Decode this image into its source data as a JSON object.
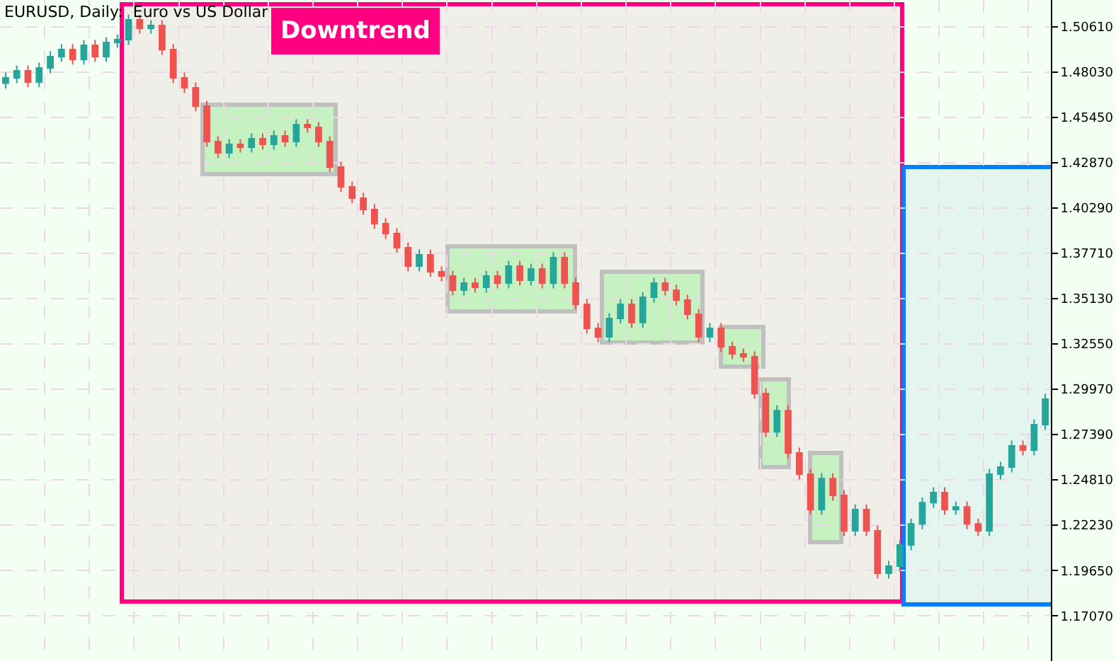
{
  "chart_data": {
    "type": "candlestick",
    "title": "EURUSD, Daily:  Euro vs US Dollar",
    "annotations": [
      "Downtrend"
    ],
    "categories": [
      null,
      null,
      null,
      null,
      null,
      null,
      null,
      null,
      null,
      null,
      null,
      null,
      null,
      null,
      null,
      null,
      null,
      null,
      null,
      null,
      null,
      null,
      null,
      null,
      null,
      null,
      null,
      null,
      null,
      null,
      null,
      null,
      null,
      null,
      null,
      null,
      null,
      null,
      null,
      null,
      null,
      null,
      null,
      null,
      null,
      null,
      null,
      null,
      null,
      null,
      null,
      null,
      null,
      null,
      null,
      null,
      null,
      null,
      null,
      null,
      null,
      null,
      null,
      null,
      null,
      null,
      null,
      null,
      null,
      null,
      null,
      null,
      null,
      null,
      null,
      null,
      null,
      null,
      null,
      null,
      null,
      null,
      null,
      null,
      null,
      null,
      null,
      null,
      null,
      null,
      null,
      null,
      null,
      null
    ],
    "ohlc": [
      [
        1.474,
        1.4801,
        1.471,
        1.4771
      ],
      [
        1.4771,
        1.4841,
        1.4741,
        1.4811
      ],
      [
        1.4811,
        1.4841,
        1.4717,
        1.4747
      ],
      [
        1.4747,
        1.4857,
        1.4717,
        1.4827
      ],
      [
        1.4827,
        1.4922,
        1.4797,
        1.4892
      ],
      [
        1.4892,
        1.4962,
        1.4862,
        1.4932
      ],
      [
        1.4932,
        1.4962,
        1.4846,
        1.4876
      ],
      [
        1.4876,
        1.4986,
        1.4846,
        1.4956
      ],
      [
        1.4956,
        1.4986,
        1.4862,
        1.4892
      ],
      [
        1.4892,
        1.5002,
        1.4862,
        1.4972
      ],
      [
        1.4972,
        1.5018,
        1.4942,
        1.4988
      ],
      [
        1.4988,
        1.5131,
        1.4958,
        1.5101
      ],
      [
        1.5101,
        1.5131,
        1.5023,
        1.5053
      ],
      [
        1.5053,
        1.5099,
        1.5023,
        1.5069
      ],
      [
        1.5069,
        1.5099,
        1.4902,
        1.4932
      ],
      [
        1.4932,
        1.4962,
        1.4741,
        1.4771
      ],
      [
        1.4771,
        1.4801,
        1.4684,
        1.4714
      ],
      [
        1.4714,
        1.4744,
        1.458,
        1.461
      ],
      [
        1.461,
        1.464,
        1.4378,
        1.4408
      ],
      [
        1.4408,
        1.4438,
        1.4314,
        1.4344
      ],
      [
        1.4344,
        1.4422,
        1.4314,
        1.4392
      ],
      [
        1.4392,
        1.4422,
        1.4346,
        1.4376
      ],
      [
        1.4376,
        1.4454,
        1.4346,
        1.4424
      ],
      [
        1.4424,
        1.4454,
        1.4362,
        1.4392
      ],
      [
        1.4392,
        1.447,
        1.4362,
        1.444
      ],
      [
        1.444,
        1.447,
        1.4378,
        1.4408
      ],
      [
        1.4408,
        1.4535,
        1.4378,
        1.4505
      ],
      [
        1.4505,
        1.4535,
        1.4459,
        1.4489
      ],
      [
        1.4489,
        1.4519,
        1.4378,
        1.4408
      ],
      [
        1.4408,
        1.4438,
        1.4233,
        1.4263
      ],
      [
        1.4263,
        1.4293,
        1.412,
        1.415
      ],
      [
        1.415,
        1.418,
        1.4056,
        1.4086
      ],
      [
        1.4086,
        1.4116,
        1.3991,
        1.4021
      ],
      [
        1.4021,
        1.4051,
        1.3911,
        1.3941
      ],
      [
        1.3941,
        1.3971,
        1.3854,
        1.3884
      ],
      [
        1.3884,
        1.3914,
        1.3774,
        1.3804
      ],
      [
        1.3804,
        1.3834,
        1.3669,
        1.3699
      ],
      [
        1.3699,
        1.3793,
        1.3669,
        1.3763
      ],
      [
        1.3763,
        1.3793,
        1.3637,
        1.3667
      ],
      [
        1.3667,
        1.3697,
        1.3612,
        1.3642
      ],
      [
        1.3642,
        1.3672,
        1.3532,
        1.3562
      ],
      [
        1.3562,
        1.3632,
        1.3532,
        1.3602
      ],
      [
        1.3602,
        1.3632,
        1.3548,
        1.3578
      ],
      [
        1.3578,
        1.3672,
        1.3548,
        1.3642
      ],
      [
        1.3642,
        1.3672,
        1.3572,
        1.3602
      ],
      [
        1.3602,
        1.3729,
        1.3572,
        1.3699
      ],
      [
        1.3699,
        1.3729,
        1.3588,
        1.3618
      ],
      [
        1.3618,
        1.3713,
        1.3588,
        1.3683
      ],
      [
        1.3683,
        1.3713,
        1.3572,
        1.3602
      ],
      [
        1.3602,
        1.3777,
        1.3572,
        1.3747
      ],
      [
        1.3747,
        1.3777,
        1.3572,
        1.3602
      ],
      [
        1.3602,
        1.3632,
        1.3451,
        1.3481
      ],
      [
        1.3481,
        1.3511,
        1.3314,
        1.3344
      ],
      [
        1.3344,
        1.3374,
        1.3266,
        1.3296
      ],
      [
        1.3296,
        1.3431,
        1.3266,
        1.3401
      ],
      [
        1.3401,
        1.3511,
        1.3371,
        1.3481
      ],
      [
        1.3481,
        1.3511,
        1.3347,
        1.3377
      ],
      [
        1.3377,
        1.3551,
        1.3347,
        1.3521
      ],
      [
        1.3521,
        1.3632,
        1.3491,
        1.3602
      ],
      [
        1.3602,
        1.3632,
        1.3532,
        1.3562
      ],
      [
        1.3562,
        1.3592,
        1.3475,
        1.3505
      ],
      [
        1.3505,
        1.3535,
        1.3395,
        1.3425
      ],
      [
        1.3425,
        1.3455,
        1.3266,
        1.3296
      ],
      [
        1.3296,
        1.3374,
        1.3266,
        1.3344
      ],
      [
        1.3344,
        1.3374,
        1.3209,
        1.3239
      ],
      [
        1.3239,
        1.3269,
        1.3169,
        1.3199
      ],
      [
        1.3199,
        1.3229,
        1.3153,
        1.3183
      ],
      [
        1.3183,
        1.3213,
        1.2943,
        1.2973
      ],
      [
        1.2973,
        1.3003,
        1.2725,
        1.2755
      ],
      [
        1.2755,
        1.2906,
        1.2725,
        1.2876
      ],
      [
        1.2876,
        1.2906,
        1.2605,
        1.2635
      ],
      [
        1.2635,
        1.2665,
        1.2484,
        1.2514
      ],
      [
        1.2514,
        1.2544,
        1.2282,
        1.2312
      ],
      [
        1.2312,
        1.2519,
        1.2282,
        1.2489
      ],
      [
        1.2489,
        1.2519,
        1.2363,
        1.2393
      ],
      [
        1.2393,
        1.2423,
        1.2161,
        1.2191
      ],
      [
        1.2191,
        1.2342,
        1.2161,
        1.2312
      ],
      [
        1.2312,
        1.2342,
        1.2161,
        1.2191
      ],
      [
        1.2191,
        1.2221,
        1.192,
        1.195
      ],
      [
        1.195,
        1.202,
        1.192,
        1.199
      ],
      [
        1.199,
        1.2141,
        1.196,
        1.2111
      ],
      [
        1.2111,
        1.2261,
        1.2081,
        1.2231
      ],
      [
        1.2231,
        1.2382,
        1.2201,
        1.2352
      ],
      [
        1.2352,
        1.2439,
        1.2322,
        1.2409
      ],
      [
        1.2409,
        1.2439,
        1.2282,
        1.2312
      ],
      [
        1.2312,
        1.2358,
        1.2282,
        1.2328
      ],
      [
        1.2328,
        1.2358,
        1.2201,
        1.2231
      ],
      [
        1.2231,
        1.2261,
        1.2161,
        1.2191
      ],
      [
        1.2191,
        1.2544,
        1.2161,
        1.2514
      ],
      [
        1.2514,
        1.2584,
        1.2484,
        1.2554
      ],
      [
        1.2554,
        1.2705,
        1.2524,
        1.2675
      ],
      [
        1.2675,
        1.2705,
        1.2621,
        1.2651
      ],
      [
        1.2651,
        1.2826,
        1.2621,
        1.2796
      ],
      [
        1.2796,
        1.2971,
        1.2766,
        1.2941
      ]
    ],
    "ylim": [
      1.145,
      1.5214
    ],
    "yticks": [
      {
        "value": 1.5061,
        "label": "1.50610"
      },
      {
        "value": 1.4803,
        "label": "1.48030"
      },
      {
        "value": 1.4545,
        "label": "1.45450"
      },
      {
        "value": 1.4287,
        "label": "1.42870"
      },
      {
        "value": 1.4029,
        "label": "1.40290"
      },
      {
        "value": 1.3771,
        "label": "1.37710"
      },
      {
        "value": 1.3513,
        "label": "1.35130"
      },
      {
        "value": 1.3255,
        "label": "1.32550"
      },
      {
        "value": 1.2997,
        "label": "1.29970"
      },
      {
        "value": 1.2739,
        "label": "1.27390"
      },
      {
        "value": 1.2481,
        "label": "1.24810"
      },
      {
        "value": 1.2223,
        "label": "1.22230"
      },
      {
        "value": 1.1965,
        "label": "1.19650"
      },
      {
        "value": 1.1707,
        "label": "1.17070"
      }
    ],
    "grid": true,
    "tick_labels": "y"
  }
}
